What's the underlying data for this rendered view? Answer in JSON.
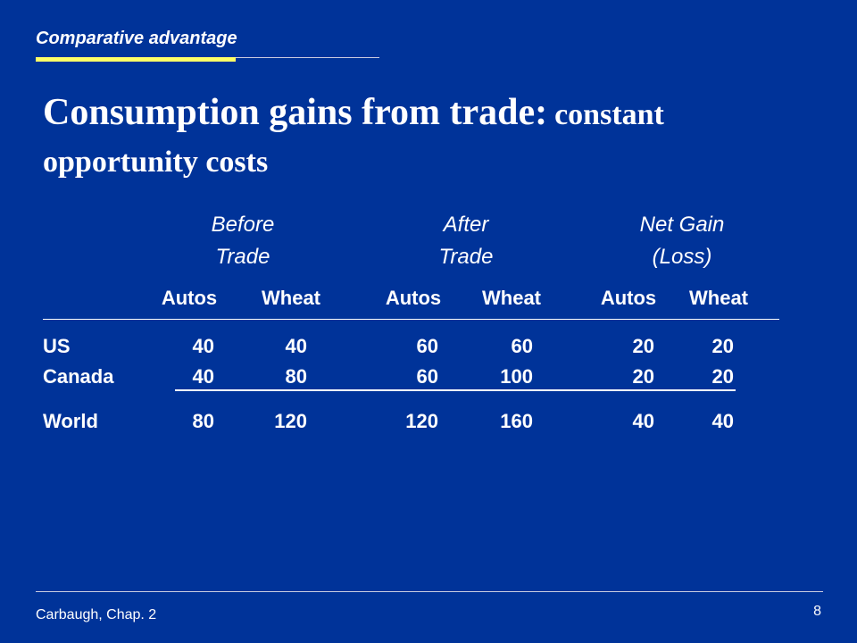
{
  "header": {
    "section_title": "Comparative advantage"
  },
  "title": {
    "main": "Consumption gains from trade:",
    "sub": "constant opportunity costs"
  },
  "groups": [
    {
      "line1": "Before",
      "line2": "Trade"
    },
    {
      "line1": "After",
      "line2": "Trade"
    },
    {
      "line1": "Net Gain",
      "line2": "(Loss)"
    }
  ],
  "columns": [
    "Autos",
    "Wheat",
    "Autos",
    "Wheat",
    "Autos",
    "Wheat"
  ],
  "rows": [
    {
      "label": "US",
      "values": [
        "40",
        "40",
        "60",
        "60",
        "20",
        "20"
      ]
    },
    {
      "label": "Canada",
      "values": [
        "40",
        "80",
        "60",
        "100",
        "20",
        "20"
      ]
    },
    {
      "label": "World",
      "values": [
        "80",
        "120",
        "120",
        "160",
        "40",
        "40"
      ]
    }
  ],
  "footer": {
    "source": "Carbaugh, Chap. 2",
    "page_number": "8"
  }
}
